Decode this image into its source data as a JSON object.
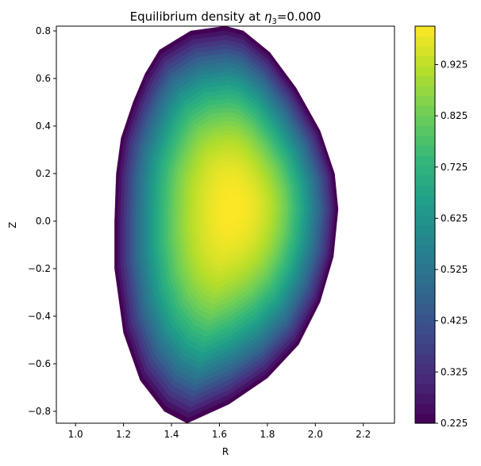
{
  "chart_data": {
    "type": "contourf",
    "title": "Equilibrium density at η3=0.000",
    "title_parts": {
      "prefix": "Equilibrium density at ",
      "symbol": "η",
      "subscript": "3",
      "suffix": "=0.000"
    },
    "xlabel": "R",
    "ylabel": "Z",
    "xlim": [
      0.92,
      2.33
    ],
    "ylim": [
      -0.85,
      0.82
    ],
    "x_ticks": [
      1.0,
      1.2,
      1.4,
      1.6,
      1.8,
      2.0,
      2.2
    ],
    "x_tick_labels": [
      "1.0",
      "1.2",
      "1.4",
      "1.6",
      "1.8",
      "2.0",
      "2.2"
    ],
    "y_ticks": [
      -0.8,
      -0.6,
      -0.4,
      -0.2,
      0.0,
      0.2,
      0.4,
      0.6,
      0.8
    ],
    "y_tick_labels": [
      "−0.8",
      "−0.6",
      "−0.4",
      "−0.2",
      "0.0",
      "0.2",
      "0.4",
      "0.6",
      "0.8"
    ],
    "colormap": "viridis",
    "value_range": [
      0.225,
      1.0
    ],
    "colorbar_ticks": [
      0.225,
      0.325,
      0.425,
      0.525,
      0.625,
      0.725,
      0.825,
      0.925
    ],
    "colorbar_tick_labels": [
      "0.225",
      "0.325",
      "0.425",
      "0.525",
      "0.625",
      "0.725",
      "0.825",
      "0.925"
    ],
    "n_levels": 40,
    "plasma_boundary": [
      [
        1.465,
        -0.85
      ],
      [
        1.37,
        -0.8
      ],
      [
        1.27,
        -0.67
      ],
      [
        1.2,
        -0.47
      ],
      [
        1.163,
        -0.2
      ],
      [
        1.163,
        0.0
      ],
      [
        1.17,
        0.2
      ],
      [
        1.19,
        0.35
      ],
      [
        1.24,
        0.5
      ],
      [
        1.29,
        0.62
      ],
      [
        1.35,
        0.72
      ],
      [
        1.48,
        0.8
      ],
      [
        1.625,
        0.82
      ],
      [
        1.7,
        0.8
      ],
      [
        1.81,
        0.71
      ],
      [
        1.92,
        0.56
      ],
      [
        2.02,
        0.38
      ],
      [
        2.08,
        0.2
      ],
      [
        2.095,
        0.05
      ],
      [
        2.075,
        -0.15
      ],
      [
        2.02,
        -0.34
      ],
      [
        1.93,
        -0.52
      ],
      [
        1.8,
        -0.66
      ],
      [
        1.64,
        -0.77
      ]
    ],
    "magnetic_axis": [
      1.66,
      0.06
    ],
    "core_value": 1.0,
    "edge_value": 0.225
  },
  "colors": {
    "axes_edge": "#000000",
    "background": "#ffffff",
    "viridis_stops": [
      "#440154",
      "#482878",
      "#3e4989",
      "#31688e",
      "#26828e",
      "#1f9e89",
      "#35b779",
      "#6ece58",
      "#b5de2b",
      "#fde725"
    ]
  }
}
